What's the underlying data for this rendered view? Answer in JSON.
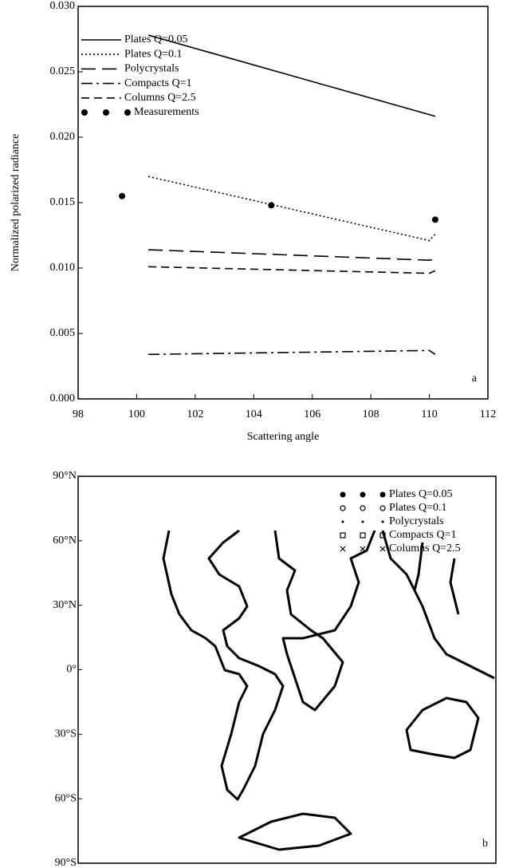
{
  "chart_data": [
    {
      "type": "line",
      "xlabel": "Scattering angle",
      "ylabel": "Normalized polarized radiance",
      "annotation": "a",
      "xlim": [
        98,
        112
      ],
      "xticks": [
        98,
        100,
        102,
        104,
        106,
        108,
        110,
        112
      ],
      "ylim": [
        0,
        0.03
      ],
      "yticks": [
        {
          "value": 0,
          "label": "0.000"
        },
        {
          "value": 0.005,
          "label": "0.005"
        },
        {
          "value": 0.01,
          "label": "0.010"
        },
        {
          "value": 0.015,
          "label": "0.015"
        },
        {
          "value": 0.02,
          "label": "0.020"
        },
        {
          "value": 0.025,
          "label": "0.025"
        },
        {
          "value": 0.03,
          "label": "0.030"
        }
      ],
      "color": "#000000",
      "series": [
        {
          "name": "Plates Q=0.05",
          "style": "solid",
          "x": [
            100.4,
            110.2
          ],
          "values": [
            0.0278,
            0.0216
          ]
        },
        {
          "name": "Plates Q=0.1",
          "style": "dotted",
          "x": [
            100.4,
            110,
            110.2
          ],
          "values": [
            0.017,
            0.0121,
            0.0126
          ]
        },
        {
          "name": "Polycrystals",
          "style": "longdash",
          "x": [
            100.4,
            110,
            110.2
          ],
          "values": [
            0.0114,
            0.0106,
            0.0107
          ]
        },
        {
          "name": "Compacts Q=1",
          "style": "dashdot",
          "x": [
            100.4,
            110,
            110.2
          ],
          "values": [
            0.0034,
            0.0037,
            0.0034
          ]
        },
        {
          "name": "Columns Q=2.5",
          "style": "shortdash",
          "x": [
            100.4,
            110,
            110.2
          ],
          "values": [
            0.0101,
            0.0096,
            0.0098
          ]
        },
        {
          "name": "Measurements",
          "style": "points",
          "x": [
            99.5,
            104.6,
            110.2
          ],
          "values": [
            0.0155,
            0.0148,
            0.0137
          ]
        }
      ]
    },
    {
      "type": "map",
      "annotation": "b",
      "ylim": [
        -90,
        90
      ],
      "yticks": [
        {
          "value": 90,
          "label": "90°N"
        },
        {
          "value": 60,
          "label": "60°N"
        },
        {
          "value": 30,
          "label": "30°N"
        },
        {
          "value": 0,
          "label": "0°"
        },
        {
          "value": -30,
          "label": "30°S"
        },
        {
          "value": -60,
          "label": "60°S"
        },
        {
          "value": -90,
          "label": "90°S"
        }
      ],
      "series": [
        {
          "name": "Plates Q=0.05",
          "marker": "filled-circle"
        },
        {
          "name": "Plates Q=0.1",
          "marker": "open-circle"
        },
        {
          "name": "Polycrystals",
          "marker": "dot"
        },
        {
          "name": "Compacts Q=1",
          "marker": "square"
        },
        {
          "name": "Columns Q=2.5",
          "marker": "cross"
        }
      ]
    }
  ]
}
